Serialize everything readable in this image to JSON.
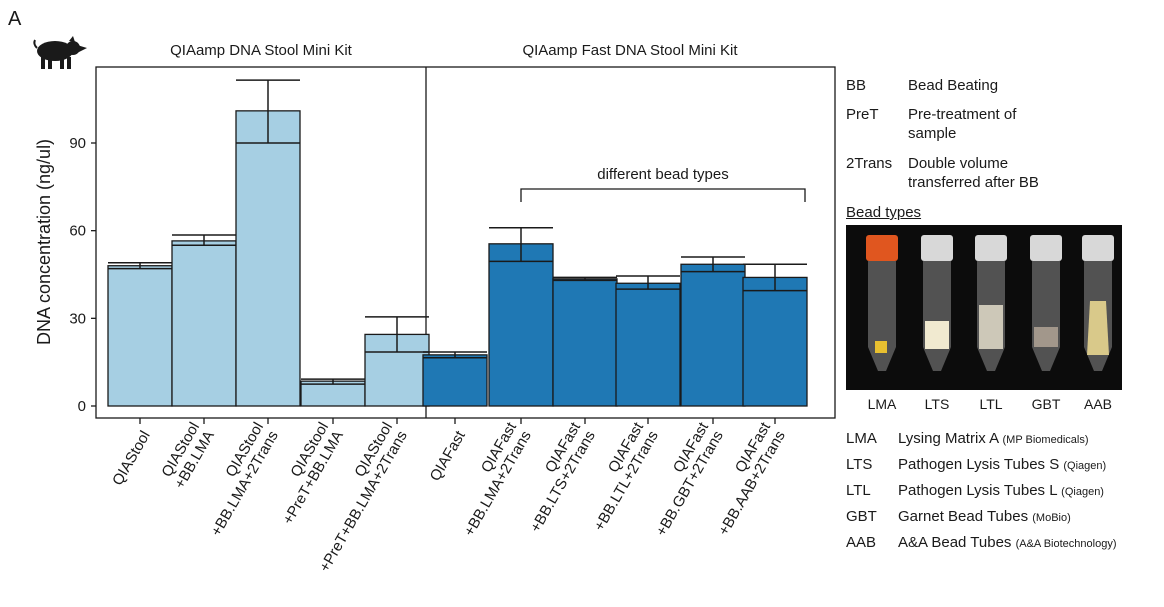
{
  "panel_letter": "A",
  "icon": "pig-icon",
  "colors": {
    "qiastool_bar": "#a6cfe3",
    "qiafast_bar": "#1f78b4",
    "axis": "#1a1a1a"
  },
  "chart_data": {
    "type": "bar",
    "ylabel": "DNA concentration (ng/ul)",
    "xlabel": "",
    "ylim": [
      0,
      106
    ],
    "yticks": [
      0,
      30,
      60,
      90
    ],
    "grid": false,
    "panels": [
      {
        "title": "QIAamp DNA Stool Mini Kit",
        "color": "#a6cfe3",
        "categories": [
          "QIAStool",
          "QIAStool\n+BB.LMA",
          "QIAStool\n+BB.LMA+2Trans",
          "QIAStool\n+PreT+BB.LMA",
          "QIAStool\n+PreT+BB.LMA+2Trans"
        ],
        "values": [
          48,
          56.5,
          101,
          8.5,
          24.5
        ],
        "error_low": [
          47,
          55,
          90,
          7.5,
          18.5
        ],
        "error_high": [
          49,
          58.5,
          111.5,
          9.2,
          30.5
        ]
      },
      {
        "title": "QIAamp Fast DNA Stool Mini Kit",
        "color": "#1f78b4",
        "categories": [
          "QIAFast",
          "QIAFast\n+BB.LMA+2Trans",
          "QIAFast\n+BB.LTS+2Trans",
          "QIAFast\n+BB.LTL+2Trans",
          "QIAFast\n+BB.GBT+2Trans",
          "QIAFast\n+BB.AAB+2Trans"
        ],
        "values": [
          17.5,
          55.5,
          43.5,
          42,
          48.5,
          44
        ],
        "error_low": [
          16.5,
          49.5,
          43,
          40,
          46,
          39.5
        ],
        "error_high": [
          18.5,
          61,
          44,
          44.5,
          51,
          48.5
        ]
      }
    ],
    "annotations": [
      {
        "text": "different bead types",
        "panel": 1,
        "from_bar": 1,
        "to_bar": 5
      }
    ]
  },
  "legend_abbreviations": [
    {
      "abbr": "BB",
      "desc": "Bead Beating"
    },
    {
      "abbr": "PreT",
      "desc": "Pre-treatment of\nsample"
    },
    {
      "abbr": "2Trans",
      "desc": "Double volume\ntransferred after BB"
    }
  ],
  "bead_types": {
    "title": "Bead types",
    "tubes": [
      "LMA",
      "LTS",
      "LTL",
      "GBT",
      "AAB"
    ],
    "entries": [
      {
        "abbr": "LMA",
        "desc": "Lysing Matrix A",
        "source": "(MP Biomedicals)"
      },
      {
        "abbr": "LTS",
        "desc": "Pathogen Lysis Tubes S",
        "source": "(Qiagen)"
      },
      {
        "abbr": "LTL",
        "desc": "Pathogen Lysis Tubes L",
        "source": "(Qiagen)"
      },
      {
        "abbr": "GBT",
        "desc": "Garnet Bead Tubes",
        "source": "(MoBio)"
      },
      {
        "abbr": "AAB",
        "desc": "A&A Bead Tubes",
        "source": "(A&A Biotechnology)"
      }
    ]
  }
}
